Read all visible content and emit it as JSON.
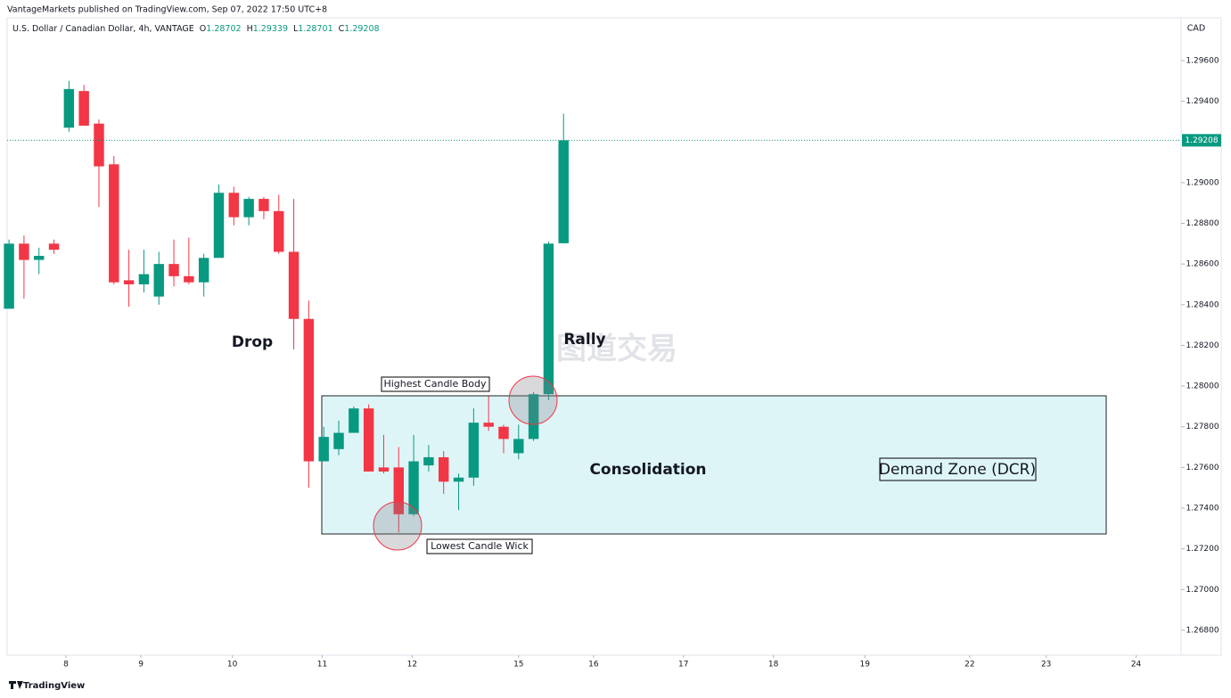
{
  "header": {
    "published": "VantageMarkets published on TradingView.com, Sep 07, 2022 17:50 UTC+8",
    "symbol": "U.S. Dollar / Canadian Dollar, 4h, VANTAGE",
    "o": "O",
    "h": "H",
    "l": "L",
    "c": "C",
    "currency": "CAD"
  },
  "footer": {
    "brand": "TradingView"
  },
  "chart_data": {
    "type": "candlestick",
    "x": [
      0,
      1,
      2,
      3,
      4,
      5,
      6,
      7,
      8,
      9,
      10,
      11,
      12,
      13,
      14,
      15,
      16,
      17,
      18,
      19,
      20,
      21,
      22,
      23,
      24,
      25,
      26,
      27,
      28,
      29,
      30,
      31,
      32,
      33,
      34,
      35,
      36,
      37
    ],
    "open": [
      1.2838,
      1.287,
      1.2862,
      1.287,
      1.2927,
      1.2945,
      1.2929,
      1.2909,
      1.2852,
      1.285,
      1.2844,
      1.286,
      1.2854,
      1.2851,
      1.2863,
      1.2895,
      1.2883,
      1.2892,
      1.2886,
      1.2866,
      1.2833,
      1.2763,
      1.2769,
      1.2777,
      1.2789,
      1.276,
      1.276,
      1.2737,
      1.2761,
      1.2765,
      1.2753,
      1.2755,
      1.2782,
      1.278,
      1.2767,
      1.2774,
      1.2796,
      1.28702
    ],
    "high": [
      1.2872,
      1.2874,
      1.2868,
      1.2872,
      1.295,
      1.2948,
      1.2931,
      1.2913,
      1.2867,
      1.2867,
      1.2866,
      1.2872,
      1.2873,
      1.2865,
      1.2899,
      1.2898,
      1.2893,
      1.2893,
      1.2894,
      1.2892,
      1.2842,
      1.278,
      1.2783,
      1.279,
      1.2791,
      1.2776,
      1.277,
      1.2776,
      1.2771,
      1.2768,
      1.2757,
      1.2789,
      1.2795,
      1.2781,
      1.2781,
      1.2797,
      1.2871,
      1.29339
    ],
    "low": [
      1.2838,
      1.2843,
      1.2855,
      1.2865,
      1.2925,
      1.2928,
      1.2888,
      1.285,
      1.2839,
      1.2846,
      1.284,
      1.2849,
      1.285,
      1.2844,
      1.2863,
      1.2879,
      1.2879,
      1.2882,
      1.2865,
      1.2818,
      1.275,
      1.2763,
      1.2766,
      1.2777,
      1.2758,
      1.2757,
      1.2728,
      1.2736,
      1.2758,
      1.2747,
      1.2739,
      1.2751,
      1.2778,
      1.2767,
      1.2764,
      1.2773,
      1.2793,
      1.28701
    ],
    "close": [
      1.287,
      1.2862,
      1.2864,
      1.2867,
      1.2946,
      1.2928,
      1.2908,
      1.2851,
      1.285,
      1.2855,
      1.286,
      1.2854,
      1.2851,
      1.2863,
      1.2895,
      1.2883,
      1.2892,
      1.2886,
      1.2866,
      1.2833,
      1.2763,
      1.2775,
      1.2777,
      1.2789,
      1.2758,
      1.2758,
      1.2737,
      1.2763,
      1.2765,
      1.2753,
      1.2755,
      1.2782,
      1.278,
      1.2774,
      1.2774,
      1.2796,
      1.287,
      1.29208
    ],
    "up_color": "#089981",
    "down_color": "#f23645",
    "xlim": [
      -0.6,
      78.2
    ],
    "xticks": [
      {
        "value": 3.8,
        "label": "8"
      },
      {
        "value": 8.8,
        "label": "9"
      },
      {
        "value": 14.9,
        "label": "10"
      },
      {
        "value": 20.9,
        "label": "11"
      },
      {
        "value": 26.9,
        "label": "12"
      },
      {
        "value": 34.0,
        "label": "15"
      },
      {
        "value": 39.0,
        "label": "16"
      },
      {
        "value": 45.0,
        "label": "17"
      },
      {
        "value": 51.0,
        "label": "18"
      },
      {
        "value": 57.1,
        "label": "19"
      },
      {
        "value": 64.1,
        "label": "22"
      },
      {
        "value": 69.2,
        "label": "23"
      },
      {
        "value": 75.2,
        "label": "24"
      }
    ],
    "ylim": [
      1.26677,
      1.2981
    ],
    "yticks": [
      {
        "value": 1.268,
        "label": "1.26800"
      },
      {
        "value": 1.27,
        "label": "1.27000"
      },
      {
        "value": 1.272,
        "label": "1.27200"
      },
      {
        "value": 1.274,
        "label": "1.27400"
      },
      {
        "value": 1.276,
        "label": "1.27600"
      },
      {
        "value": 1.278,
        "label": "1.27800"
      },
      {
        "value": 1.28,
        "label": "1.28000"
      },
      {
        "value": 1.282,
        "label": "1.28200"
      },
      {
        "value": 1.284,
        "label": "1.28400"
      },
      {
        "value": 1.286,
        "label": "1.28600"
      },
      {
        "value": 1.288,
        "label": "1.28800"
      },
      {
        "value": 1.29,
        "label": "1.29000"
      },
      {
        "value": 1.294,
        "label": "1.29400"
      },
      {
        "value": 1.296,
        "label": "1.29600"
      }
    ],
    "grid": false,
    "annotations": {
      "drop": "Drop",
      "rally": "Rally",
      "consolidation": "Consolidation",
      "zone": "Demand Zone (DCR)",
      "highest": "Highest Candle Body",
      "lowest": "Lowest Candle Wick",
      "watermark": "图道交易"
    }
  }
}
